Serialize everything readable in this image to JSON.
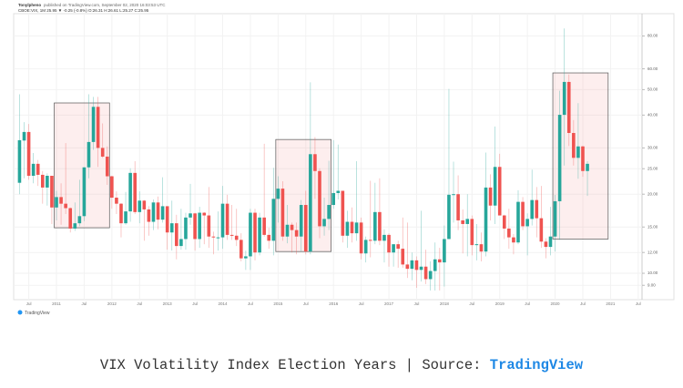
{
  "header": {
    "author": "Tonylpheno",
    "published": "published on TradingView.com, September 02, 2020 16:03:53 UTC",
    "symbol": "CBOE:VIX, 1M 25.95 ▼ -0.25 (-0.8%) O:26.31 H:26.61 L:25.27 C:25.95"
  },
  "chart_data": {
    "type": "candlestick",
    "log_scale": true,
    "grid": true,
    "up_color": "#26a69a",
    "down_color": "#ef5350",
    "x": [
      "2010-05",
      "2010-06",
      "2010-07",
      "2010-08",
      "2010-09",
      "2010-10",
      "2010-11",
      "2010-12",
      "2011-01",
      "2011-02",
      "2011-03",
      "2011-04",
      "2011-05",
      "2011-06",
      "2011-07",
      "2011-08",
      "2011-09",
      "2011-10",
      "2011-11",
      "2011-12",
      "2012-01",
      "2012-02",
      "2012-03",
      "2012-04",
      "2012-05",
      "2012-06",
      "2012-07",
      "2012-08",
      "2012-09",
      "2012-10",
      "2012-11",
      "2012-12",
      "2013-01",
      "2013-02",
      "2013-03",
      "2013-04",
      "2013-05",
      "2013-06",
      "2013-07",
      "2013-08",
      "2013-09",
      "2013-10",
      "2013-11",
      "2013-12",
      "2014-01",
      "2014-02",
      "2014-03",
      "2014-04",
      "2014-05",
      "2014-06",
      "2014-07",
      "2014-08",
      "2014-09",
      "2014-10",
      "2014-11",
      "2014-12",
      "2015-01",
      "2015-02",
      "2015-03",
      "2015-04",
      "2015-05",
      "2015-06",
      "2015-07",
      "2015-08",
      "2015-09",
      "2015-10",
      "2015-11",
      "2015-12",
      "2016-01",
      "2016-02",
      "2016-03",
      "2016-04",
      "2016-05",
      "2016-06",
      "2016-07",
      "2016-08",
      "2016-09",
      "2016-10",
      "2016-11",
      "2016-12",
      "2017-01",
      "2017-02",
      "2017-03",
      "2017-04",
      "2017-05",
      "2017-06",
      "2017-07",
      "2017-08",
      "2017-09",
      "2017-10",
      "2017-11",
      "2017-12",
      "2018-01",
      "2018-02",
      "2018-03",
      "2018-04",
      "2018-05",
      "2018-06",
      "2018-07",
      "2018-08",
      "2018-09",
      "2018-10",
      "2018-11",
      "2018-12",
      "2019-01",
      "2019-02",
      "2019-03",
      "2019-04",
      "2019-05",
      "2019-06",
      "2019-07",
      "2019-08",
      "2019-09",
      "2019-10",
      "2019-11",
      "2019-12",
      "2020-01",
      "2020-02",
      "2020-03",
      "2020-04",
      "2020-05",
      "2020-06",
      "2020-07",
      "2020-08"
    ],
    "ohlc": [
      [
        22.1,
        48,
        20,
        32.1
      ],
      [
        32,
        37.6,
        23,
        34.5
      ],
      [
        34.5,
        37,
        22.7,
        23.5
      ],
      [
        23.5,
        28.7,
        22,
        26.1
      ],
      [
        26.1,
        27,
        21.5,
        23.7
      ],
      [
        23.7,
        24.5,
        18.4,
        21.2
      ],
      [
        21.2,
        24,
        18.1,
        23.5
      ],
      [
        23.5,
        23.5,
        15.4,
        17.8
      ],
      [
        17.8,
        20.6,
        15.9,
        19.5
      ],
      [
        19.5,
        22,
        15.3,
        18.4
      ],
      [
        18.4,
        31.3,
        16.8,
        17.7
      ],
      [
        17.7,
        17.8,
        14.3,
        14.8
      ],
      [
        14.8,
        18.6,
        14.5,
        15.5
      ],
      [
        15.5,
        22.7,
        15.1,
        16.5
      ],
      [
        16.5,
        25.3,
        15.8,
        25.3
      ],
      [
        25.3,
        48,
        23,
        31.6
      ],
      [
        31.6,
        46.9,
        29.5,
        43
      ],
      [
        43,
        46.9,
        25.4,
        30
      ],
      [
        30,
        37.2,
        27.5,
        27.8
      ],
      [
        27.8,
        30.4,
        21.7,
        23.4
      ],
      [
        23.4,
        23.5,
        17.6,
        19.4
      ],
      [
        19.4,
        20.5,
        16.8,
        18.4
      ],
      [
        18.4,
        18.5,
        13.7,
        15.5
      ],
      [
        15.5,
        20.4,
        15.3,
        17.2
      ],
      [
        17.2,
        25.1,
        15.7,
        24.1
      ],
      [
        24.1,
        26.7,
        16.8,
        17.1
      ],
      [
        17.1,
        20.5,
        15.5,
        18.9
      ],
      [
        18.9,
        19,
        13.3,
        17.5
      ],
      [
        17.5,
        18,
        13.9,
        15.7
      ],
      [
        15.7,
        19.1,
        14.6,
        18.6
      ],
      [
        18.6,
        19.6,
        14.7,
        16
      ],
      [
        16,
        23.2,
        15.6,
        18
      ],
      [
        18,
        18,
        12.3,
        14.3
      ],
      [
        14.3,
        18.9,
        12.2,
        15.5
      ],
      [
        15.5,
        16.7,
        11.3,
        12.7
      ],
      [
        12.7,
        17.6,
        12.3,
        13.5
      ],
      [
        13.5,
        17,
        12.3,
        16.3
      ],
      [
        16.3,
        21.9,
        15.3,
        16.9
      ],
      [
        16.9,
        17,
        12.2,
        13.5
      ],
      [
        13.5,
        17.9,
        12.5,
        17
      ],
      [
        17,
        17.1,
        12.9,
        16.6
      ],
      [
        16.6,
        21.3,
        12.5,
        13.8
      ],
      [
        13.8,
        14.4,
        11.8,
        13.7
      ],
      [
        13.7,
        17.2,
        12.2,
        13.7
      ],
      [
        13.7,
        21.5,
        12.4,
        18.4
      ],
      [
        18.4,
        19.9,
        13.4,
        14
      ],
      [
        14,
        18.2,
        13.4,
        13.9
      ],
      [
        13.9,
        17.6,
        12.7,
        13.4
      ],
      [
        13.4,
        14.2,
        11.1,
        11.4
      ],
      [
        11.4,
        12.2,
        10.3,
        11.6
      ],
      [
        11.6,
        17.6,
        10.3,
        17
      ],
      [
        17,
        17.6,
        11.2,
        12
      ],
      [
        12,
        17,
        11.7,
        16.3
      ],
      [
        16.3,
        31.1,
        13.8,
        14
      ],
      [
        14,
        14.9,
        12.4,
        13.3
      ],
      [
        13.3,
        25.2,
        11.7,
        19.2
      ],
      [
        19.2,
        23.4,
        15.6,
        21
      ],
      [
        21,
        22.4,
        13.3,
        13.8
      ],
      [
        13.8,
        18.2,
        13,
        15.3
      ],
      [
        15.3,
        15.6,
        12,
        14.6
      ],
      [
        14.6,
        15.6,
        11.8,
        13.8
      ],
      [
        13.8,
        19,
        12.1,
        18.2
      ],
      [
        18.2,
        20.6,
        11.8,
        12.1
      ],
      [
        12.1,
        53.3,
        11.8,
        28.4
      ],
      [
        28.4,
        33,
        19.2,
        24.5
      ],
      [
        24.5,
        25.1,
        13.6,
        15.1
      ],
      [
        15.1,
        19.4,
        13.9,
        16.1
      ],
      [
        16.1,
        26.8,
        14.6,
        18.2
      ],
      [
        18.2,
        32.1,
        17.6,
        20.2
      ],
      [
        20.2,
        30.9,
        19.1,
        20.6
      ],
      [
        20.6,
        20.6,
        13.1,
        13.9
      ],
      [
        13.9,
        17.3,
        12.5,
        15.7
      ],
      [
        15.7,
        17.8,
        13.1,
        14.2
      ],
      [
        14.2,
        26.7,
        13.3,
        15.6
      ],
      [
        15.6,
        16.3,
        11.3,
        11.9
      ],
      [
        11.9,
        13.8,
        11,
        13.4
      ],
      [
        13.4,
        22.5,
        11.5,
        13.3
      ],
      [
        13.3,
        22.1,
        12.9,
        17.1
      ],
      [
        17.1,
        23,
        12.8,
        13.3
      ],
      [
        13.3,
        14.7,
        11,
        14
      ],
      [
        14,
        14.2,
        10.6,
        12
      ],
      [
        12,
        12.8,
        10.6,
        12.9
      ],
      [
        12.9,
        13.3,
        10.5,
        12.4
      ],
      [
        12.4,
        16.3,
        10.5,
        10.8
      ],
      [
        10.8,
        15.6,
        9.6,
        10.4
      ],
      [
        10.4,
        12,
        9.4,
        11.2
      ],
      [
        11.2,
        11.6,
        8.8,
        10.3
      ],
      [
        10.3,
        17.3,
        9.3,
        10.6
      ],
      [
        10.6,
        12.3,
        9.1,
        9.5
      ],
      [
        9.5,
        11.1,
        8.6,
        10.2
      ],
      [
        10.2,
        13.1,
        8.6,
        11.3
      ],
      [
        11.3,
        12.5,
        8.6,
        11
      ],
      [
        11,
        15.2,
        8.9,
        13.5
      ],
      [
        13.5,
        50.3,
        13.5,
        19.9
      ],
      [
        19.9,
        26.6,
        15.6,
        20
      ],
      [
        20,
        23.6,
        14.6,
        15.9
      ],
      [
        15.9,
        17.5,
        11.9,
        15.4
      ],
      [
        15.4,
        20,
        11.6,
        16.1
      ],
      [
        16.1,
        16.6,
        11.7,
        12.8
      ],
      [
        12.8,
        15.4,
        11.2,
        12.9
      ],
      [
        12.9,
        14.3,
        11.1,
        12.1
      ],
      [
        12.1,
        28.8,
        11.6,
        21.2
      ],
      [
        21.2,
        23.8,
        15.9,
        18.1
      ],
      [
        18.1,
        36.2,
        15.4,
        25.4
      ],
      [
        25.4,
        28.5,
        16.6,
        16.6
      ],
      [
        16.6,
        16.7,
        13.5,
        14.8
      ],
      [
        14.8,
        17.6,
        12.4,
        13.7
      ],
      [
        13.7,
        14.1,
        11.8,
        13.1
      ],
      [
        13.1,
        20.7,
        12.9,
        18.7
      ],
      [
        18.7,
        19.5,
        14.6,
        15.1
      ],
      [
        15.1,
        16.9,
        11.7,
        16.1
      ],
      [
        16.1,
        24.8,
        15.2,
        19
      ],
      [
        19,
        21.3,
        13.7,
        16.2
      ],
      [
        16.2,
        21.5,
        12.5,
        13.2
      ],
      [
        13.2,
        13.6,
        11.4,
        12.6
      ],
      [
        12.6,
        17.9,
        11.7,
        13.8
      ],
      [
        13.8,
        19.9,
        12.1,
        18.8
      ],
      [
        18.8,
        49.5,
        13.4,
        40.1
      ],
      [
        40.1,
        85.5,
        25.7,
        53.5
      ],
      [
        53.5,
        57.1,
        30.5,
        34.2
      ],
      [
        34.2,
        38.3,
        25.7,
        27.5
      ],
      [
        27.5,
        44.4,
        22.9,
        30.4
      ],
      [
        30.4,
        30.6,
        23.3,
        24.5
      ],
      [
        24.5,
        26.7,
        19.7,
        26.1
      ]
    ],
    "highlights": [
      {
        "from": "2011-01",
        "to": "2011-12",
        "low": 14.9,
        "high": 44.5
      },
      {
        "from": "2015-01",
        "to": "2015-12",
        "low": 12.1,
        "high": 32.3
      },
      {
        "from": "2020-01",
        "to": "2020-12",
        "low": 13.5,
        "high": 57.9
      }
    ],
    "ylim": [
      8,
      95
    ],
    "yticks": [
      {
        "value": 9,
        "label": "9.00"
      },
      {
        "value": 10,
        "label": "10.00"
      },
      {
        "value": 12,
        "label": "12.00"
      },
      {
        "value": 15,
        "label": "15.00"
      },
      {
        "value": 20,
        "label": "20.00"
      },
      {
        "value": 25,
        "label": "25.00"
      },
      {
        "value": 30,
        "label": "30.00"
      },
      {
        "value": 40,
        "label": "40.00"
      },
      {
        "value": 50,
        "label": "50.00"
      },
      {
        "value": 60,
        "label": "60.00"
      },
      {
        "value": 80,
        "label": "80.00"
      }
    ],
    "xticks": [
      {
        "value": "2010-07",
        "label": "Jul"
      },
      {
        "value": "2011-01",
        "label": "2011"
      },
      {
        "value": "2011-07",
        "label": "Jul"
      },
      {
        "value": "2012-01",
        "label": "2012"
      },
      {
        "value": "2012-07",
        "label": "Jul"
      },
      {
        "value": "2013-01",
        "label": "2013"
      },
      {
        "value": "2013-07",
        "label": "Jul"
      },
      {
        "value": "2014-01",
        "label": "2014"
      },
      {
        "value": "2014-07",
        "label": "Jul"
      },
      {
        "value": "2015-01",
        "label": "2015"
      },
      {
        "value": "2015-07",
        "label": "Jul"
      },
      {
        "value": "2016-01",
        "label": "2016"
      },
      {
        "value": "2016-07",
        "label": "Jul"
      },
      {
        "value": "2017-01",
        "label": "2017"
      },
      {
        "value": "2017-07",
        "label": "Jul"
      },
      {
        "value": "2018-01",
        "label": "2018"
      },
      {
        "value": "2018-07",
        "label": "Jul"
      },
      {
        "value": "2019-01",
        "label": "2019"
      },
      {
        "value": "2019-07",
        "label": "Jul"
      },
      {
        "value": "2020-01",
        "label": "2020"
      },
      {
        "value": "2020-07",
        "label": "Jul"
      },
      {
        "value": "2021-01",
        "label": "2021"
      },
      {
        "value": "2021-07",
        "label": "Jul"
      }
    ]
  },
  "logo": "TradingView",
  "caption": {
    "text": "VIX Volatility Index Election Years | Source: ",
    "source": "TradingView"
  }
}
